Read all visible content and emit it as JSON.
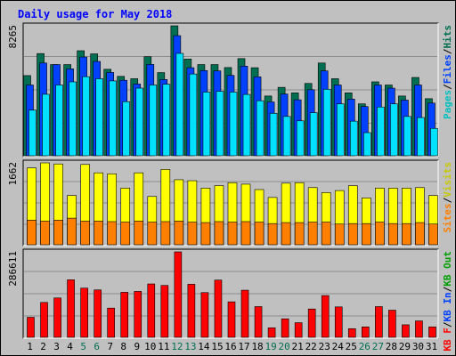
{
  "chart_data": {
    "title": "Daily usage for May 2018",
    "colors": {
      "background": "#c0c0c0",
      "plot": "#c0c0c0",
      "title": "#0000ff",
      "hits": "#006e50",
      "files": "#0040ff",
      "pages": "#00e0ff",
      "visits": "#ffff00",
      "sites": "#ff8000",
      "kbytes": "#ff0000",
      "kb_in": "#0040ff",
      "kb_out": "#00a000",
      "grid": "#8c8c8c",
      "weekend": "#006e50"
    },
    "x_labels": [
      "1",
      "2",
      "3",
      "4",
      "5",
      "6",
      "7",
      "8",
      "9",
      "10",
      "11",
      "12",
      "13",
      "14",
      "15",
      "16",
      "17",
      "18",
      "19",
      "20",
      "21",
      "22",
      "23",
      "24",
      "25",
      "26",
      "27",
      "28",
      "29",
      "30",
      "31"
    ],
    "weekend_days": [
      5,
      6,
      12,
      13,
      19,
      20,
      26,
      27
    ],
    "panels": [
      {
        "id": "top",
        "type": "bar",
        "max_label": "8265",
        "ylim": [
          0,
          8265
        ],
        "grid": true,
        "legend": [
          {
            "text": "Pages",
            "color": "#00c0c0"
          },
          {
            "text": "/",
            "color": "#000000"
          },
          {
            "text": "Files",
            "color": "#0040ff"
          },
          {
            "text": "/",
            "color": "#000000"
          },
          {
            "text": "Hits",
            "color": "#006e50"
          }
        ],
        "series": [
          {
            "name": "Hits",
            "values": [
              5100,
              6500,
              5800,
              5800,
              6680,
              6480,
              5500,
              5050,
              4900,
              6300,
              5290,
              8265,
              6150,
              5800,
              5800,
              5610,
              6180,
              5600,
              3800,
              4350,
              4000,
              4600,
              5900,
              4900,
              4000,
              3300,
              4700,
              4500,
              3800,
              4980,
              3630
            ]
          },
          {
            "name": "Files",
            "values": [
              4500,
              5900,
              5800,
              5530,
              6280,
              6000,
              5300,
              4800,
              4560,
              5810,
              4850,
              7640,
              5600,
              5420,
              5400,
              5110,
              5700,
              5020,
              3420,
              3930,
              3560,
              4200,
              5400,
              4500,
              3600,
              3130,
              4500,
              4300,
              3540,
              4500,
              3350
            ]
          },
          {
            "name": "Pages",
            "values": [
              2900,
              3910,
              4500,
              4700,
              5030,
              4900,
              4760,
              3440,
              4300,
              4500,
              4550,
              6510,
              5200,
              4050,
              4100,
              4050,
              3900,
              3500,
              2700,
              2500,
              2220,
              2740,
              4230,
              3300,
              2200,
              1470,
              3100,
              3300,
              2500,
              2430,
              1740
            ]
          }
        ]
      },
      {
        "id": "middle",
        "type": "bar",
        "max_label": "1662",
        "ylim": [
          0,
          1662
        ],
        "grid": true,
        "legend": [
          {
            "text": "Sites",
            "color": "#ff8000"
          },
          {
            "text": "/",
            "color": "#000000"
          },
          {
            "text": "Visits",
            "color": "#c8c800"
          }
        ],
        "series": [
          {
            "name": "Visits",
            "values": [
              1560,
              1662,
              1640,
              1000,
              1630,
              1460,
              1440,
              1150,
              1460,
              980,
              1530,
              1320,
              1300,
              1150,
              1200,
              1260,
              1230,
              1120,
              960,
              1250,
              1260,
              1160,
              1060,
              1100,
              1200,
              950,
              1150,
              1150,
              1150,
              1160,
              1000
            ]
          },
          {
            "name": "Sites",
            "values": [
              500,
              480,
              500,
              540,
              480,
              480,
              470,
              460,
              480,
              460,
              470,
              480,
              460,
              450,
              470,
              460,
              470,
              460,
              430,
              450,
              450,
              460,
              460,
              420,
              430,
              430,
              460,
              430,
              430,
              450,
              420
            ]
          }
        ]
      },
      {
        "id": "bottom",
        "type": "bar",
        "max_label": "286611",
        "ylim": [
          0,
          286611
        ],
        "grid": true,
        "legend": [
          {
            "text": "KB F",
            "color": "#ff0000"
          },
          {
            "text": "/",
            "color": "#000000"
          },
          {
            "text": "KB In",
            "color": "#0040ff"
          },
          {
            "text": "/",
            "color": "#000000"
          },
          {
            "text": "KB Out",
            "color": "#00a000"
          }
        ],
        "series": [
          {
            "name": "KB F",
            "values": [
              67000,
              117000,
              132000,
              193000,
              165000,
              159000,
              98000,
              151000,
              154000,
              179000,
              174000,
              286611,
              178000,
              150000,
              192000,
              119000,
              158000,
              103000,
              32000,
              62000,
              49000,
              95000,
              140000,
              102000,
              29000,
              35000,
              103000,
              91000,
              42000,
              55000,
              35000
            ]
          }
        ]
      }
    ]
  }
}
